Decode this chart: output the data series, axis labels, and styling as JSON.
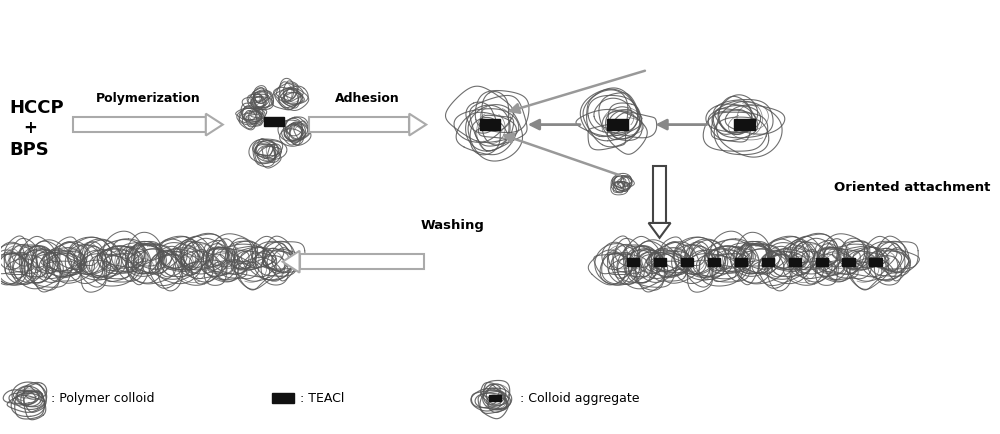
{
  "bg_color": "#ffffff",
  "text_color": "#000000",
  "arrow_gray": "#aaaaaa",
  "arrow_dark": "#555555",
  "bar_color": "#111111",
  "steps": {
    "hccp_bps": [
      "HCCP",
      "+",
      "BPS"
    ],
    "poly_label": "Polymerization",
    "adhesion_label": "Adhesion",
    "oriented_label": "Oriented attachment",
    "washing_label": "Washing"
  },
  "legend": {
    "polymer_colloid": ": Polymer colloid",
    "teacl": ": TEACl",
    "colloid_aggregate": ": Colloid aggregate"
  }
}
